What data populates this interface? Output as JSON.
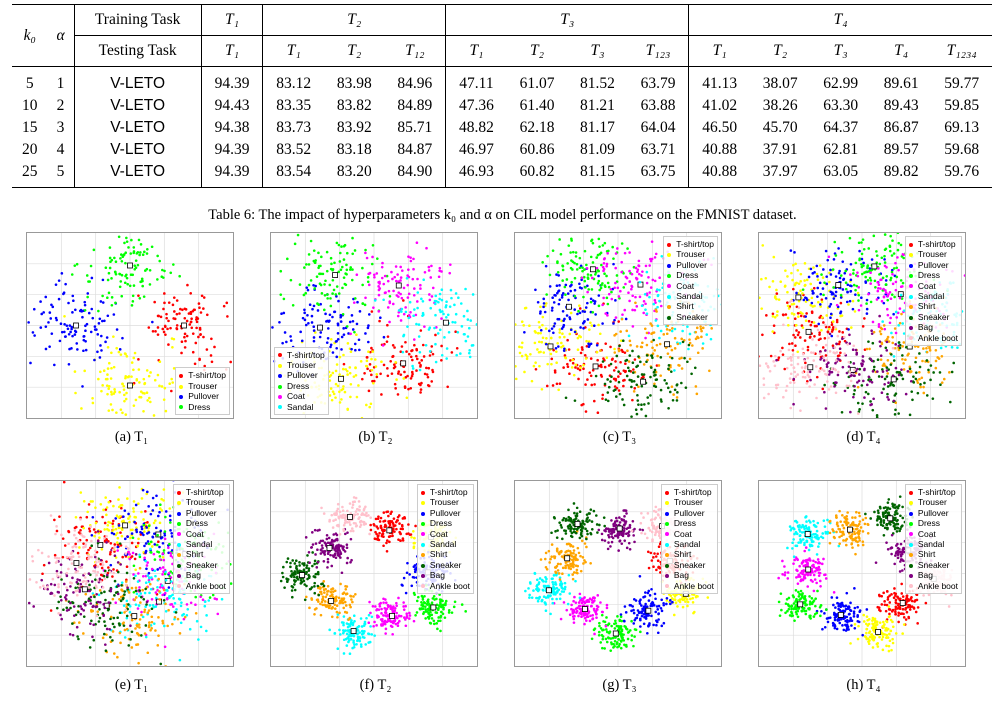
{
  "table": {
    "col_k0": "k₀",
    "col_alpha": "α",
    "training_label": "Training Task",
    "testing_label": "Testing Task",
    "training_tasks": [
      "T₁",
      "T₂",
      "T₃",
      "T₄"
    ],
    "testing_tasks": [
      "T₁",
      "T₁",
      "T₂",
      "T₁₂",
      "T₁",
      "T₂",
      "T₃",
      "T₁₂₃",
      "T₁",
      "T₂",
      "T₃",
      "T₄",
      "T₁₂₃₄"
    ],
    "rows": [
      {
        "k0": "5",
        "alpha": "1",
        "method": "V-LETO",
        "vals": [
          "94.39",
          "83.12",
          "83.98",
          "84.96",
          "47.11",
          "61.07",
          "81.52",
          "63.79",
          "41.13",
          "38.07",
          "62.99",
          "89.61",
          "59.77"
        ]
      },
      {
        "k0": "10",
        "alpha": "2",
        "method": "V-LETO",
        "vals": [
          "94.43",
          "83.35",
          "83.82",
          "84.89",
          "47.36",
          "61.40",
          "81.21",
          "63.88",
          "41.02",
          "38.26",
          "63.30",
          "89.43",
          "59.85"
        ]
      },
      {
        "k0": "15",
        "alpha": "3",
        "method": "V-LETO",
        "vals": [
          "94.38",
          "83.73",
          "83.92",
          "85.71",
          "48.82",
          "62.18",
          "81.17",
          "64.04",
          "46.50",
          "45.70",
          "64.37",
          "86.87",
          "69.13"
        ]
      },
      {
        "k0": "20",
        "alpha": "4",
        "method": "V-LETO",
        "vals": [
          "94.39",
          "83.52",
          "83.18",
          "84.87",
          "46.97",
          "60.86",
          "81.09",
          "63.71",
          "40.88",
          "37.91",
          "62.81",
          "89.57",
          "59.68"
        ]
      },
      {
        "k0": "25",
        "alpha": "5",
        "method": "V-LETO",
        "vals": [
          "94.39",
          "83.54",
          "83.20",
          "84.90",
          "46.93",
          "60.82",
          "81.15",
          "63.75",
          "40.88",
          "37.97",
          "63.05",
          "89.82",
          "59.76"
        ]
      }
    ]
  },
  "caption": "Table 6: The impact of hyperparameters k₀ and α on CIL model performance on the FMNIST dataset.",
  "classes": [
    {
      "name": "T-shirt/top",
      "color": "#ff0000"
    },
    {
      "name": "Trouser",
      "color": "#ffff00"
    },
    {
      "name": "Pullover",
      "color": "#0000ff"
    },
    {
      "name": "Dress",
      "color": "#00ff00"
    },
    {
      "name": "Coat",
      "color": "#ff00ff"
    },
    {
      "name": "Sandal",
      "color": "#00ffff"
    },
    {
      "name": "Shirt",
      "color": "#ffa500"
    },
    {
      "name": "Sneaker",
      "color": "#006400"
    },
    {
      "name": "Bag",
      "color": "#800080"
    },
    {
      "name": "Ankle boot",
      "color": "#ffc0cb"
    }
  ],
  "panels": [
    {
      "label": "(a) T₁",
      "legend": [
        "T-shirt/top",
        "Trouser",
        "Pullover",
        "Dress"
      ]
    },
    {
      "label": "(b) T₂",
      "legend": [
        "T-shirt/top",
        "Trouser",
        "Pullover",
        "Dress",
        "Coat",
        "Sandal"
      ]
    },
    {
      "label": "(c) T₃",
      "legend": [
        "T-shirt/top",
        "Trouser",
        "Pullover",
        "Dress",
        "Coat",
        "Sandal",
        "Shirt",
        "Sneaker"
      ]
    },
    {
      "label": "(d) T₄",
      "legend": [
        "T-shirt/top",
        "Trouser",
        "Pullover",
        "Dress",
        "Coat",
        "Sandal",
        "Shirt",
        "Sneaker",
        "Bag",
        "Ankle boot"
      ]
    },
    {
      "label": "(e) T₁",
      "legend": [
        "T-shirt/top",
        "Trouser",
        "Pullover",
        "Dress",
        "Coat",
        "Sandal",
        "Shirt",
        "Sneaker",
        "Bag",
        "Ankle boot"
      ]
    },
    {
      "label": "(f) T₂",
      "legend": [
        "T-shirt/top",
        "Trouser",
        "Pullover",
        "Dress",
        "Coat",
        "Sandal",
        "Shirt",
        "Sneaker",
        "Bag",
        "Ankle boot"
      ]
    },
    {
      "label": "(g) T₃",
      "legend": [
        "T-shirt/top",
        "Trouser",
        "Pullover",
        "Dress",
        "Coat",
        "Sandal",
        "Shirt",
        "Sneaker",
        "Bag",
        "Ankle boot"
      ]
    },
    {
      "label": "(h) T₄",
      "legend": [
        "T-shirt/top",
        "Trouser",
        "Pullover",
        "Dress",
        "Coat",
        "Sandal",
        "Shirt",
        "Sneaker",
        "Bag",
        "Ankle boot"
      ]
    }
  ]
}
